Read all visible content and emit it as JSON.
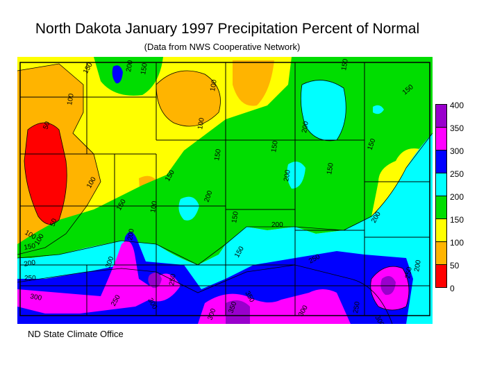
{
  "title": "North Dakota January 1997 Precipitation Percent of Normal",
  "subtitle": "(Data from NWS Cooperative Network)",
  "footer": "ND State Climate Office",
  "legend": {
    "labels": [
      "400",
      "350",
      "300",
      "250",
      "200",
      "150",
      "100",
      "50",
      "0"
    ],
    "bins": [
      {
        "range": "350-400",
        "color": "#9900cc"
      },
      {
        "range": "300-350",
        "color": "#ff00ff"
      },
      {
        "range": "250-300",
        "color": "#0000ff"
      },
      {
        "range": "200-250",
        "color": "#00ffff"
      },
      {
        "range": "150-200",
        "color": "#00dd00"
      },
      {
        "range": "100-150",
        "color": "#ffff00"
      },
      {
        "range": "50-100",
        "color": "#ffb400"
      },
      {
        "range": "0-50",
        "color": "#ff0000"
      }
    ]
  },
  "contour_labels": [
    "150",
    "200",
    "150",
    "100",
    "100",
    "150",
    "150",
    "100",
    "50",
    "100",
    "100",
    "150",
    "200",
    "150",
    "200",
    "150",
    "100",
    "200",
    "150",
    "200",
    "50",
    "100",
    "150",
    "200",
    "250",
    "150",
    "200",
    "200",
    "150",
    "250",
    "300",
    "300",
    "250",
    "200",
    "250",
    "350",
    "300",
    "300",
    "250",
    "300",
    "350",
    "300",
    "250",
    "150",
    "150"
  ]
}
